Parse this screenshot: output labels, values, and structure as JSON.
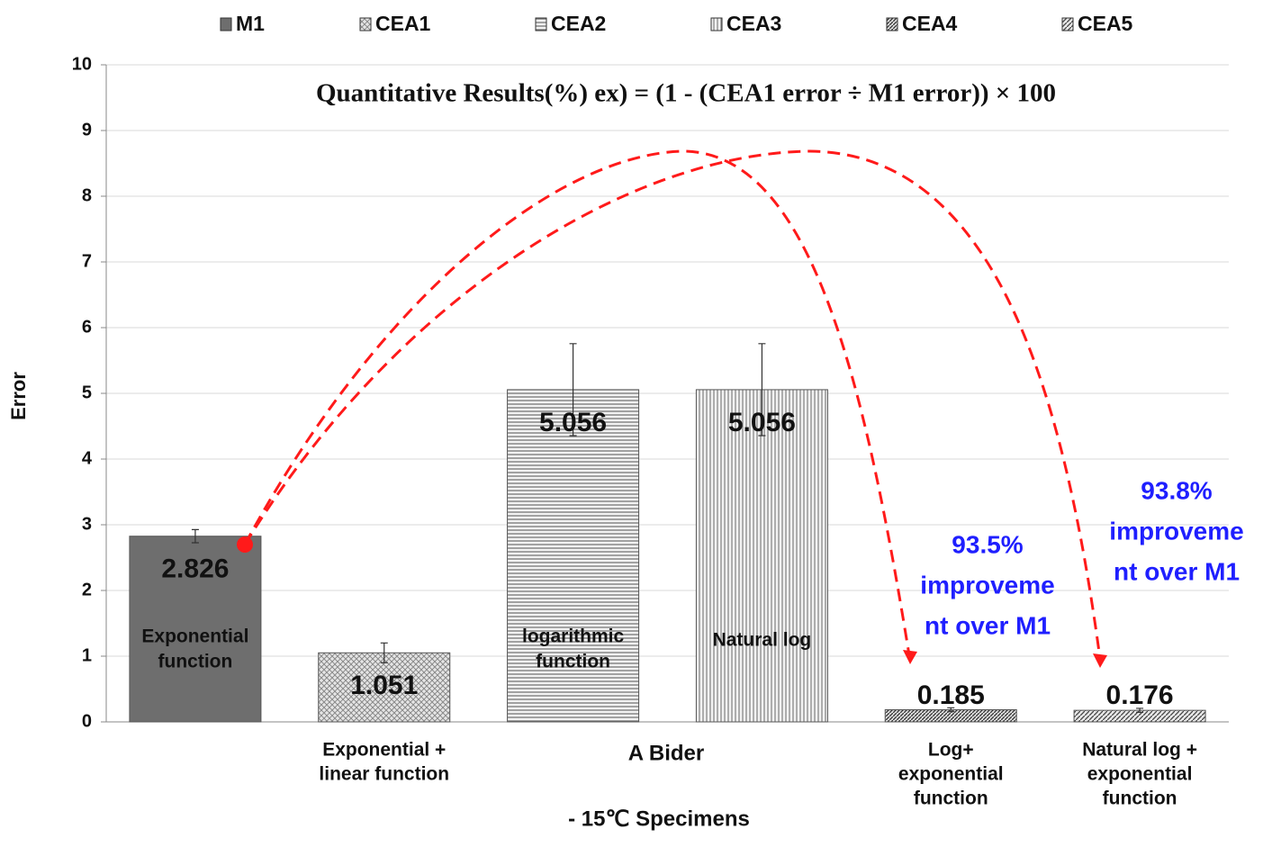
{
  "chart_data": {
    "type": "bar",
    "title": "Quantitative Results(%) ex) = (1 - (CEA1 error ÷ M1 error)) × 100",
    "ylabel": "Error",
    "xlabel": "- 15℃ Specimens",
    "group_label": "A Bider",
    "ylim": [
      0,
      10
    ],
    "yticks": [
      0,
      1,
      2,
      3,
      4,
      5,
      6,
      7,
      8,
      9,
      10
    ],
    "grid": true,
    "legend": "top",
    "series": [
      {
        "name": "M1",
        "color": "#6e6e6e",
        "pattern": "solid",
        "values": [
          2.826
        ],
        "errors": [
          0.1
        ],
        "inner_label": [
          "Exponential",
          "function"
        ]
      },
      {
        "name": "CEA1",
        "color": "#c8c8c8",
        "pattern": "crosshatch",
        "values": [
          1.051
        ],
        "errors": [
          0.15
        ],
        "below_label": [
          "Exponential +",
          "linear function"
        ]
      },
      {
        "name": "CEA2",
        "color": "#bdbdbd",
        "pattern": "horizontal",
        "values": [
          5.056
        ],
        "errors": [
          0.7
        ],
        "inner_label": [
          "logarithmic",
          "function"
        ]
      },
      {
        "name": "CEA3",
        "color": "#bdbdbd",
        "pattern": "vertical",
        "values": [
          5.056
        ],
        "errors": [
          0.7
        ],
        "inner_label": [
          "Natural log"
        ]
      },
      {
        "name": "CEA4",
        "color": "#555555",
        "pattern": "diagonal-dense",
        "values": [
          0.185
        ],
        "errors": [
          0.03
        ],
        "below_label": [
          "Log+",
          "exponential",
          "function"
        ]
      },
      {
        "name": "CEA5",
        "color": "#555555",
        "pattern": "diagonal",
        "values": [
          0.176
        ],
        "errors": [
          0.03
        ],
        "below_label": [
          "Natural log +",
          "exponential",
          "function"
        ]
      }
    ],
    "annotations": [
      {
        "lines": [
          "93.5%",
          "improveme",
          "nt over M1"
        ],
        "color": "#1f1fff"
      },
      {
        "lines": [
          "93.8%",
          "improveme",
          "nt over M1"
        ],
        "color": "#1f1fff"
      }
    ]
  }
}
